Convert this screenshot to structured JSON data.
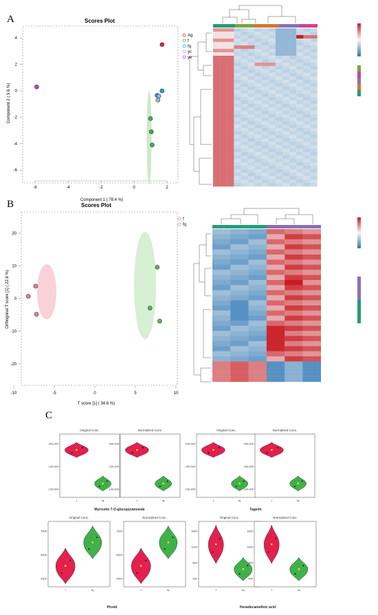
{
  "panels": {
    "a": "A",
    "b": "B",
    "c": "C"
  },
  "plsda": {
    "title": "Scores Plot",
    "xlabel": "Component 1 ( 78.4 %)",
    "ylabel": "Component 2 ( 9.6 %)",
    "xticks": [
      -6,
      -4,
      -2,
      0,
      2
    ],
    "yticks": [
      4,
      2,
      0,
      -2,
      -4,
      -6
    ],
    "legend": [
      {
        "label": "Ag",
        "color": "#e8232f"
      },
      {
        "label": "f",
        "color": "#3cb54a"
      },
      {
        "label": "fq",
        "color": "#21a7c7"
      },
      {
        "label": "yc",
        "color": "#9fb0e0"
      },
      {
        "label": "ye",
        "color": "#c23fc3"
      }
    ]
  },
  "chart_data": [
    {
      "type": "scatter",
      "title": "Scores Plot",
      "xlabel": "Component 1 ( 78.4 %)",
      "ylabel": "Component 2 ( 9.6 %)",
      "xlim": [
        -7,
        2.5
      ],
      "ylim": [
        -7,
        5
      ],
      "series": [
        {
          "name": "Ag",
          "x": [
            1.7
          ],
          "y": [
            3.5
          ]
        },
        {
          "name": "f",
          "x": [
            1.0,
            1.05,
            1.1
          ],
          "y": [
            -2.1,
            -3.1,
            -4.1
          ]
        },
        {
          "name": "fq",
          "x": [
            1.4,
            1.7
          ],
          "y": [
            -0.35,
            0.0
          ]
        },
        {
          "name": "yc",
          "x": [
            1.45,
            1.5
          ],
          "y": [
            -0.7,
            -0.4
          ]
        },
        {
          "name": "ye",
          "x": [
            -5.9
          ],
          "y": [
            0.3
          ]
        }
      ]
    },
    {
      "type": "scatter",
      "title": "Scores Plot",
      "xlabel": "T score [1] ( 34.6 %)",
      "ylabel": "Orthogonal T score [1] ( 22.6 %)",
      "xlim": [
        -11,
        11
      ],
      "ylim": [
        -26,
        24
      ],
      "series": [
        {
          "name": "f",
          "x": [
            -8.2,
            -7.3,
            -7.2
          ],
          "y": [
            0.7,
            3.8,
            -4.8
          ]
        },
        {
          "name": "fq",
          "x": [
            7.7,
            6.8,
            8.0
          ],
          "y": [
            9.6,
            -2.9,
            -6.9
          ]
        }
      ]
    }
  ],
  "oplsda": {
    "title": "Scores Plot",
    "xlabel": "T score [1] ( 34.6 %)",
    "ylabel": "Orthogonal T score [1] ( 22.6 %)",
    "xticks": [
      -10,
      -5,
      0,
      5,
      10
    ],
    "yticks": [
      20,
      10,
      0,
      -10,
      -20
    ],
    "legend": [
      {
        "label": "f",
        "color": "#f08a9a"
      },
      {
        "label": "fq",
        "color": "#77c77e"
      }
    ]
  },
  "violins": [
    {
      "name": "Myricetin 7-O-glucopyranoside",
      "subtitles": [
        "Original Conc.",
        "Normalized Conc."
      ],
      "yticks": [
        "200,000",
        "150,000",
        "100,000"
      ]
    },
    {
      "name": "Tagetin",
      "subtitles": [
        "Original Conc.",
        "Normalized Conc."
      ],
      "yticks": [
        "200,000",
        "150,000",
        "100,000"
      ]
    },
    {
      "name": "Piceid",
      "subtitles": [
        "Original Conc.",
        "Normalized Conc."
      ],
      "yticks": [
        "7500",
        "5000",
        "2500"
      ]
    },
    {
      "name": "Hexadecanedioic acid",
      "subtitles": [
        "Original Conc.",
        "Normalized Conc."
      ],
      "yticks": [
        "1600",
        "1200",
        "800",
        "400"
      ]
    }
  ],
  "violin_groups": [
    "f",
    "fq"
  ]
}
